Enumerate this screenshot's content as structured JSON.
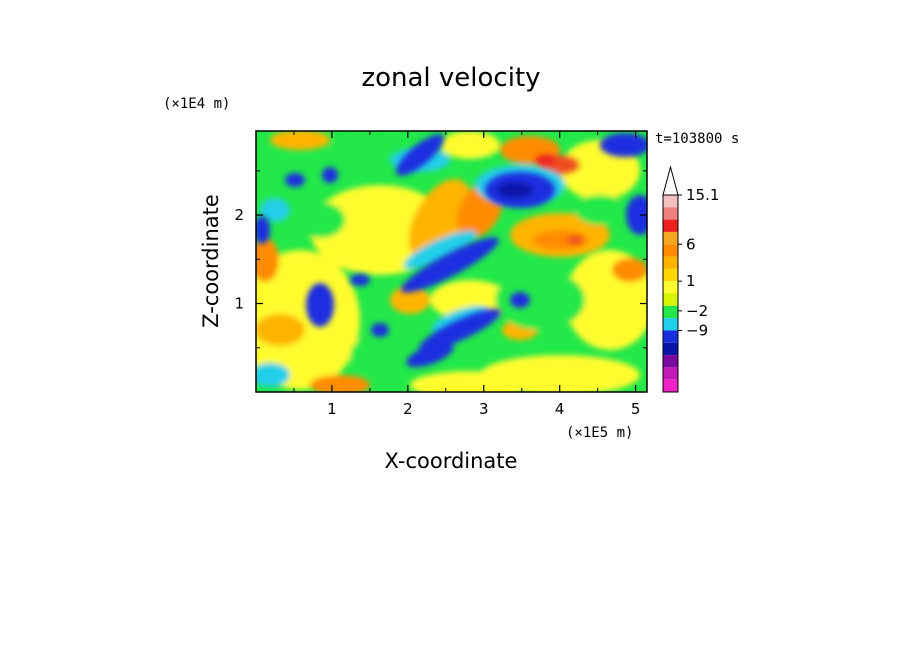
{
  "chart_data": {
    "type": "heatmap",
    "title": "zonal velocity",
    "xlabel": "X-coordinate",
    "ylabel": "Z-coordinate",
    "x_unit": "(×1E5 m)",
    "y_unit": "(×1E4 m)",
    "time_label": "t=103800 s",
    "xlim": [
      0,
      5.15
    ],
    "ylim": [
      0,
      2.95
    ],
    "x_ticks": [
      "1",
      "2",
      "3",
      "4",
      "5"
    ],
    "y_ticks": [
      "1",
      "2"
    ],
    "colorbar": {
      "levels": [
        "15.1",
        "6",
        "1",
        "−2",
        "−9"
      ],
      "colors": [
        "#f2bfbf",
        "#f08080",
        "#ee2020",
        "#f5a623",
        "#ff8c00",
        "#ffb400",
        "#ffd700",
        "#fffc2e",
        "#d6f500",
        "#22e84a",
        "#22cfe8",
        "#1a2fe0",
        "#0a14a8",
        "#7a0aa0",
        "#c21ab8",
        "#f021c4"
      ],
      "extend": "max"
    }
  }
}
